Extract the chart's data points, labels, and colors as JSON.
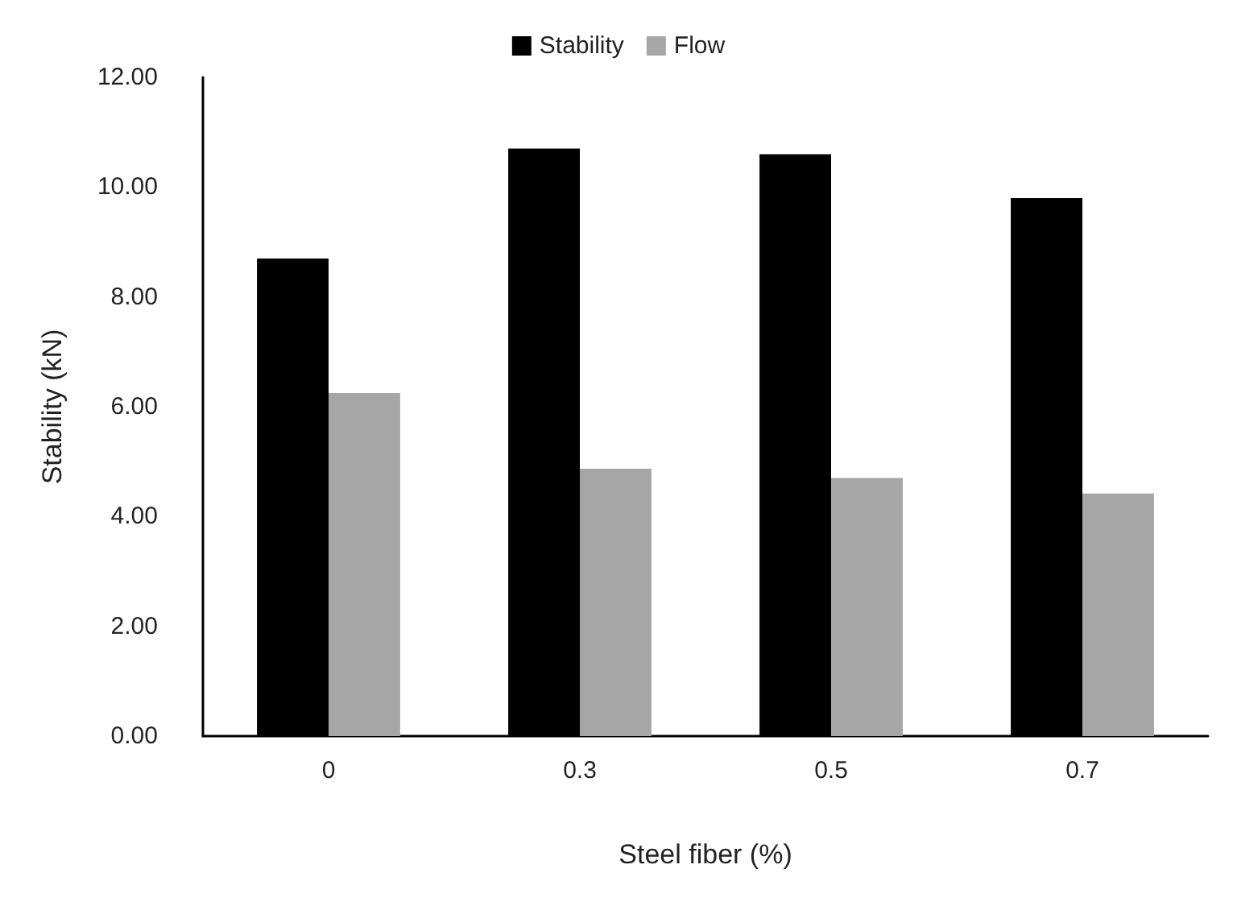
{
  "chart_data": {
    "type": "bar",
    "xlabel": "Steel fiber (%)",
    "ylabel": "Stability (kN)",
    "categories": [
      "0",
      "0.3",
      "0.5",
      "0.7"
    ],
    "series": [
      {
        "name": "Stability",
        "color": "#000000",
        "values": [
          8.7,
          10.7,
          10.6,
          9.8
        ]
      },
      {
        "name": "Flow",
        "color": "#a6a6a6",
        "values": [
          6.25,
          4.87,
          4.7,
          4.42
        ]
      }
    ],
    "ylim": [
      0,
      12
    ],
    "yticks": [
      {
        "value": 0,
        "label": "0.00"
      },
      {
        "value": 2,
        "label": "2.00"
      },
      {
        "value": 4,
        "label": "4.00"
      },
      {
        "value": 6,
        "label": "6.00"
      },
      {
        "value": 8,
        "label": "8.00"
      },
      {
        "value": 10,
        "label": "10.00"
      },
      {
        "value": 12,
        "label": "12.00"
      }
    ],
    "grid": false,
    "legend": "top"
  }
}
